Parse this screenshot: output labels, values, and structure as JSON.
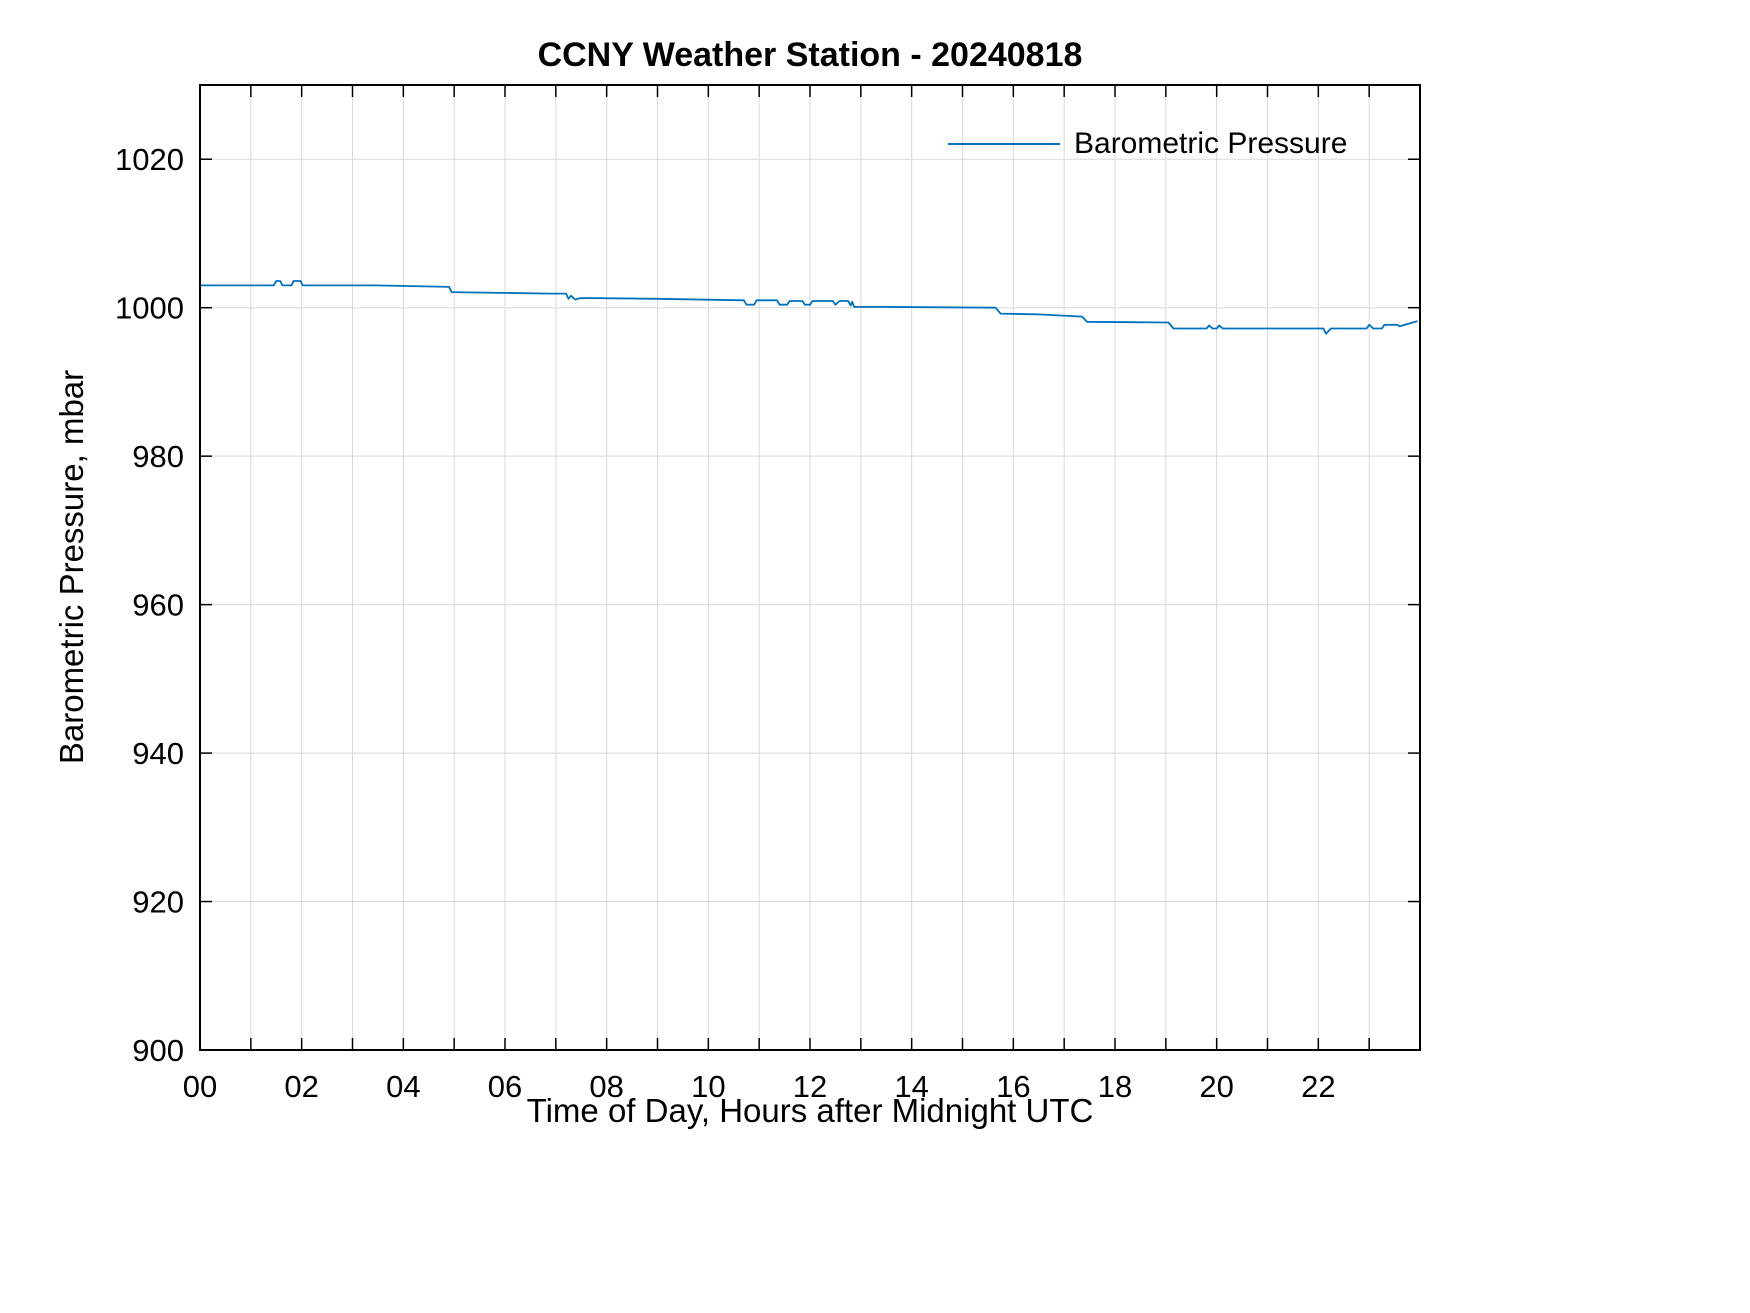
{
  "chart_data": {
    "type": "line",
    "title": "CCNY Weather Station - 20240818",
    "xlabel": "Time of Day, Hours after Midnight UTC",
    "ylabel": "Barometric Pressure, mbar",
    "xlim": [
      0,
      24
    ],
    "ylim": [
      900,
      1030
    ],
    "x_ticks": [
      0,
      2,
      4,
      6,
      8,
      10,
      12,
      14,
      16,
      18,
      20,
      22
    ],
    "x_tick_labels": [
      "00",
      "02",
      "04",
      "06",
      "08",
      "10",
      "12",
      "14",
      "16",
      "18",
      "20",
      "22"
    ],
    "x_minor_step": 1,
    "y_ticks": [
      900,
      920,
      940,
      960,
      980,
      1000,
      1020
    ],
    "y_tick_labels": [
      "900",
      "920",
      "940",
      "960",
      "980",
      "1000",
      "1020"
    ],
    "grid": true,
    "legend": {
      "position": "northeast",
      "entries": [
        "Barometric Pressure"
      ]
    },
    "colors": {
      "line": "#0072BD",
      "grid": "#d9d9d9",
      "axis": "#000000",
      "background": "#ffffff"
    },
    "series": [
      {
        "name": "Barometric Pressure",
        "points": [
          [
            0.0,
            1003.0
          ],
          [
            1.45,
            1003.0
          ],
          [
            1.5,
            1003.6
          ],
          [
            1.58,
            1003.6
          ],
          [
            1.62,
            1003.0
          ],
          [
            1.8,
            1003.0
          ],
          [
            1.84,
            1003.6
          ],
          [
            1.98,
            1003.6
          ],
          [
            2.02,
            1003.0
          ],
          [
            3.5,
            1003.0
          ],
          [
            4.9,
            1002.8
          ],
          [
            4.95,
            1002.1
          ],
          [
            6.9,
            1001.9
          ],
          [
            7.2,
            1001.9
          ],
          [
            7.25,
            1001.2
          ],
          [
            7.3,
            1001.6
          ],
          [
            7.38,
            1001.1
          ],
          [
            7.5,
            1001.3
          ],
          [
            9.0,
            1001.2
          ],
          [
            10.7,
            1001.0
          ],
          [
            10.75,
            1000.4
          ],
          [
            10.9,
            1000.4
          ],
          [
            10.95,
            1001.0
          ],
          [
            11.35,
            1001.0
          ],
          [
            11.4,
            1000.4
          ],
          [
            11.55,
            1000.4
          ],
          [
            11.6,
            1000.9
          ],
          [
            11.85,
            1000.9
          ],
          [
            11.9,
            1000.4
          ],
          [
            12.0,
            1000.4
          ],
          [
            12.05,
            1000.9
          ],
          [
            12.45,
            1000.9
          ],
          [
            12.5,
            1000.4
          ],
          [
            12.58,
            1000.9
          ],
          [
            12.75,
            1000.9
          ],
          [
            12.8,
            1000.3
          ],
          [
            12.83,
            1000.8
          ],
          [
            12.87,
            1000.1
          ],
          [
            13.5,
            1000.1
          ],
          [
            15.65,
            1000.0
          ],
          [
            15.75,
            999.2
          ],
          [
            16.5,
            999.1
          ],
          [
            17.35,
            998.8
          ],
          [
            17.45,
            998.1
          ],
          [
            19.05,
            998.0
          ],
          [
            19.15,
            997.2
          ],
          [
            19.8,
            997.2
          ],
          [
            19.85,
            997.6
          ],
          [
            19.92,
            997.2
          ],
          [
            20.0,
            997.2
          ],
          [
            20.05,
            997.6
          ],
          [
            20.12,
            997.2
          ],
          [
            21.0,
            997.2
          ],
          [
            22.1,
            997.2
          ],
          [
            22.15,
            996.5
          ],
          [
            22.25,
            997.2
          ],
          [
            22.95,
            997.2
          ],
          [
            23.0,
            997.7
          ],
          [
            23.08,
            997.2
          ],
          [
            23.25,
            997.2
          ],
          [
            23.3,
            997.7
          ],
          [
            23.55,
            997.7
          ],
          [
            23.6,
            997.5
          ],
          [
            23.95,
            998.2
          ]
        ]
      }
    ]
  }
}
